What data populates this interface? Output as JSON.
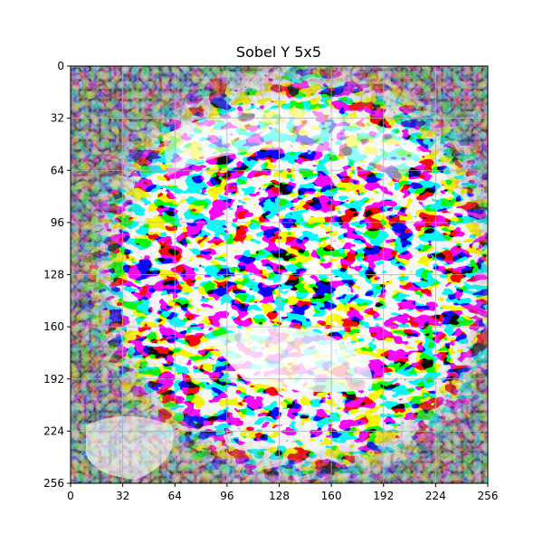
{
  "figure": {
    "title": "Sobel Y 5x5",
    "x_range": [
      0,
      256
    ],
    "y_range": [
      0,
      256
    ],
    "y_inverted": true,
    "x_ticks": [
      "0",
      "32",
      "64",
      "96",
      "128",
      "160",
      "192",
      "224",
      "256"
    ],
    "y_ticks": [
      "0",
      "32",
      "64",
      "96",
      "128",
      "160",
      "192",
      "224",
      "256"
    ],
    "grid": true,
    "colors": {
      "grid": "#b0b0b0",
      "axes": "#000000"
    }
  }
}
